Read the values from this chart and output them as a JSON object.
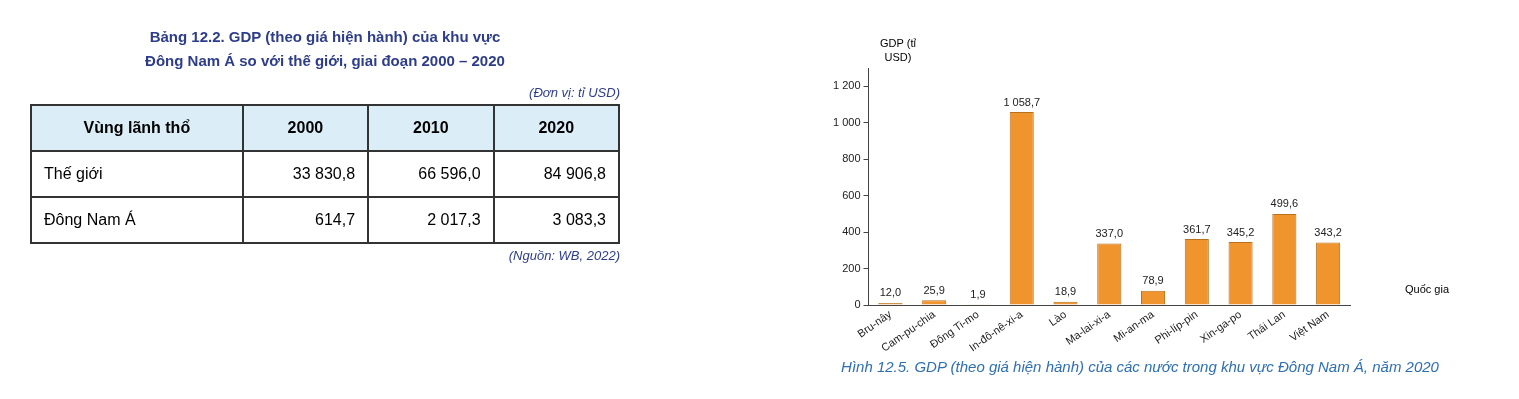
{
  "chart_data": [
    {
      "type": "other",
      "title": "Bảng 12.2. GDP (theo giá hiện hành) của khu vực Đông Nam Á so với thế giới, giai đoạn 2000 – 2020",
      "ylabel": "Vùng lãnh thổ",
      "categories": [
        "2000",
        "2010",
        "2020"
      ],
      "y_categories": [
        "Thế giới",
        "Đông Nam Á"
      ],
      "cell_labels": [
        [
          "33 830,8",
          "66 596,0",
          "84 906,8"
        ],
        [
          "614,7",
          "2 017,3",
          "3 083,3"
        ]
      ],
      "annotations": [
        "(Đơn vị: tỉ USD)",
        "(Nguồn: WB, 2022)"
      ]
    },
    {
      "type": "bar",
      "title": "Hình 12.5. GDP (theo giá hiện hành) của các nước trong khu vực Đông Nam Á, năm 2020",
      "ylabel": "GDP (tỉ USD)",
      "xlabel": "Quốc gia",
      "categories": [
        "Bru-nây",
        "Cam-pu-chia",
        "Đông Ti-mo",
        "In-đô-nê-xi-a",
        "Lào",
        "Ma-lai-xi-a",
        "Mi-an-ma",
        "Phi-líp-pin",
        "Xin-ga-po",
        "Thái Lan",
        "Việt Nam"
      ],
      "values": [
        12.0,
        25.9,
        1.9,
        1058.7,
        18.9,
        337.0,
        78.9,
        361.7,
        345.2,
        499.6,
        343.2
      ],
      "value_labels": [
        "12,0",
        "25,9",
        "1,9",
        "1 058,7",
        "18,9",
        "337,0",
        "78,9",
        "361,7",
        "345,2",
        "499,6",
        "343,2"
      ],
      "color": "#f0952e",
      "ylim": [
        0,
        1300
      ],
      "yticks": [
        0,
        200,
        400,
        600,
        800,
        {
          "value": 1000,
          "label": "1 000"
        },
        {
          "value": 1200,
          "label": "1 200"
        }
      ],
      "grid": false,
      "legend": false
    }
  ]
}
